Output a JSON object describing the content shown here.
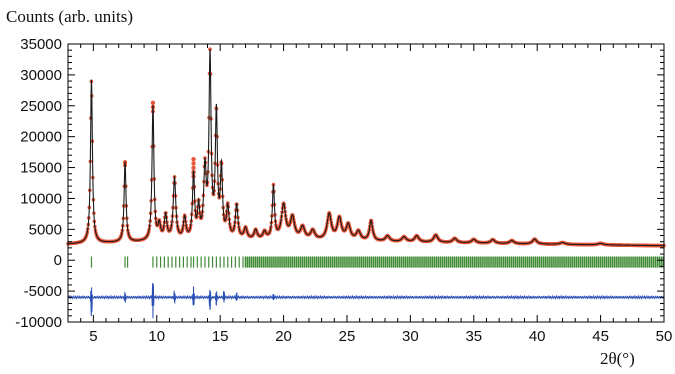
{
  "chart_data": {
    "type": "line",
    "title": "",
    "ylabel": "Counts (arb. units)",
    "xlabel": "2θ(°)",
    "xlim": [
      3,
      50
    ],
    "ylim": [
      -10000,
      35000
    ],
    "x_ticks": [
      5,
      10,
      15,
      20,
      25,
      30,
      35,
      40,
      45,
      50
    ],
    "y_ticks": [
      -10000,
      -5000,
      0,
      5000,
      10000,
      15000,
      20000,
      25000,
      30000,
      35000
    ],
    "grid": false,
    "colors": {
      "observed": "#e8573a",
      "calculated": "#1a1a1a",
      "reflections": "#3f8a35",
      "difference": "#2b50b5"
    },
    "background": {
      "x": [
        3,
        10,
        20,
        30,
        40,
        50
      ],
      "y": [
        2600,
        3000,
        3200,
        2900,
        2600,
        2350
      ]
    },
    "peaks": [
      {
        "x": 4.85,
        "height": 26500,
        "width": 0.09,
        "observed_top": 29200
      },
      {
        "x": 7.5,
        "height": 13000,
        "width": 0.09,
        "observed_top": 16000
      },
      {
        "x": 9.7,
        "height": 21800,
        "width": 0.09,
        "observed_top": 26000
      },
      {
        "x": 10.2,
        "height": 2400,
        "width": 0.12
      },
      {
        "x": 10.7,
        "height": 4000,
        "width": 0.12
      },
      {
        "x": 11.4,
        "height": 10000,
        "width": 0.12
      },
      {
        "x": 12.2,
        "height": 3500,
        "width": 0.12
      },
      {
        "x": 12.9,
        "height": 10500,
        "width": 0.1,
        "observed_top": 16500
      },
      {
        "x": 13.3,
        "height": 5000,
        "width": 0.1
      },
      {
        "x": 13.8,
        "height": 11000,
        "width": 0.12
      },
      {
        "x": 14.2,
        "height": 29000,
        "width": 0.1,
        "observed_top": 32000
      },
      {
        "x": 14.7,
        "height": 20000,
        "width": 0.1
      },
      {
        "x": 15.1,
        "height": 11000,
        "width": 0.1
      },
      {
        "x": 15.6,
        "height": 5000,
        "width": 0.12
      },
      {
        "x": 16.3,
        "height": 5500,
        "width": 0.12
      },
      {
        "x": 17.0,
        "height": 1800,
        "width": 0.15
      },
      {
        "x": 17.8,
        "height": 1500,
        "width": 0.15
      },
      {
        "x": 18.5,
        "height": 1200,
        "width": 0.15
      },
      {
        "x": 19.2,
        "height": 8500,
        "width": 0.1
      },
      {
        "x": 20.0,
        "height": 5500,
        "width": 0.2
      },
      {
        "x": 20.7,
        "height": 3500,
        "width": 0.2
      },
      {
        "x": 21.5,
        "height": 2000,
        "width": 0.2
      },
      {
        "x": 22.3,
        "height": 1500,
        "width": 0.2
      },
      {
        "x": 23.6,
        "height": 4200,
        "width": 0.2
      },
      {
        "x": 24.4,
        "height": 3500,
        "width": 0.2
      },
      {
        "x": 25.1,
        "height": 2500,
        "width": 0.2
      },
      {
        "x": 25.9,
        "height": 1500,
        "width": 0.2
      },
      {
        "x": 26.9,
        "height": 3300,
        "width": 0.15
      },
      {
        "x": 28.2,
        "height": 900,
        "width": 0.2
      },
      {
        "x": 29.5,
        "height": 800,
        "width": 0.2
      },
      {
        "x": 30.5,
        "height": 1000,
        "width": 0.2
      },
      {
        "x": 32.0,
        "height": 1200,
        "width": 0.2
      },
      {
        "x": 33.5,
        "height": 700,
        "width": 0.2
      },
      {
        "x": 35.0,
        "height": 600,
        "width": 0.2
      },
      {
        "x": 36.5,
        "height": 600,
        "width": 0.2
      },
      {
        "x": 38.0,
        "height": 500,
        "width": 0.2
      },
      {
        "x": 39.8,
        "height": 800,
        "width": 0.2
      },
      {
        "x": 42.0,
        "height": 300,
        "width": 0.25
      },
      {
        "x": 45.0,
        "height": 250,
        "width": 0.25
      }
    ],
    "reflection_marks": {
      "y_range": [
        -1200,
        600
      ],
      "sparse_x": [
        4.85,
        7.5,
        7.7,
        9.7,
        10.0,
        10.3,
        10.6,
        10.9,
        11.2,
        11.5,
        11.8,
        12.1,
        12.4,
        12.7,
        12.9,
        13.2,
        13.5,
        13.8,
        14.1,
        14.4,
        14.7,
        15.0,
        15.3,
        15.6,
        15.9,
        16.2,
        16.5,
        16.8
      ],
      "dense_from": 17.0,
      "dense_to": 50.0,
      "dense_step": 0.16
    },
    "difference": {
      "baseline": -6000,
      "spikes": [
        {
          "x": 4.85,
          "low": -9000,
          "high": -4200
        },
        {
          "x": 7.5,
          "low": -6800,
          "high": -5200
        },
        {
          "x": 9.7,
          "low": -9500,
          "high": -3600
        },
        {
          "x": 11.4,
          "low": -6900,
          "high": -5000
        },
        {
          "x": 12.9,
          "low": -7500,
          "high": -4400
        },
        {
          "x": 14.2,
          "low": -8000,
          "high": -4500
        },
        {
          "x": 14.7,
          "low": -7200,
          "high": -4800
        },
        {
          "x": 15.3,
          "low": -7000,
          "high": -5000
        },
        {
          "x": 16.3,
          "low": -6700,
          "high": -5400
        },
        {
          "x": 19.2,
          "low": -6600,
          "high": -5500
        }
      ]
    }
  }
}
